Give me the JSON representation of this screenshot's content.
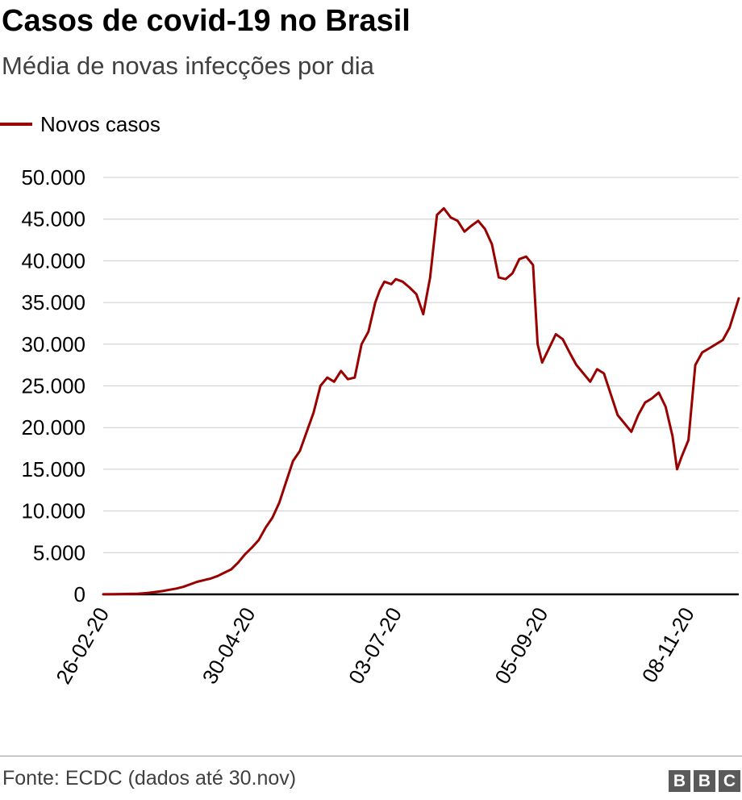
{
  "header": {
    "title": "Casos de covid-19 no Brasil",
    "subtitle": "Média de novas infecções por dia"
  },
  "legend": {
    "label": "Novos casos",
    "color": "#990000"
  },
  "footer": {
    "source": "Fonte: ECDC (dados até 30.nov)",
    "logo": [
      "B",
      "B",
      "C"
    ]
  },
  "chart_data": {
    "type": "line",
    "title": "Casos de covid-19 no Brasil",
    "subtitle": "Média de novas infecções por dia",
    "xlabel": "",
    "ylabel": "",
    "ylim": [
      0,
      50000
    ],
    "yticks": [
      0,
      5000,
      10000,
      15000,
      20000,
      25000,
      30000,
      35000,
      40000,
      45000,
      50000
    ],
    "ytick_labels": [
      "0",
      "5.000",
      "10.000",
      "15.000",
      "20.000",
      "25.000",
      "30.000",
      "35.000",
      "40.000",
      "45.000",
      "50.000"
    ],
    "xlim": [
      "2020-02-26",
      "2020-11-30"
    ],
    "xticks": [
      "2020-02-26",
      "2020-04-30",
      "2020-07-03",
      "2020-09-05",
      "2020-11-08"
    ],
    "xtick_labels": [
      "26-02-20",
      "30-04-20",
      "03-07-20",
      "05-09-20",
      "08-11-20"
    ],
    "grid": "horizontal",
    "legend_position": "top-left",
    "series": [
      {
        "name": "Novos casos",
        "color": "#990000",
        "x": [
          "2020-02-26",
          "2020-03-02",
          "2020-03-07",
          "2020-03-12",
          "2020-03-16",
          "2020-03-19",
          "2020-03-23",
          "2020-03-26",
          "2020-03-29",
          "2020-04-01",
          "2020-04-04",
          "2020-04-07",
          "2020-04-10",
          "2020-04-13",
          "2020-04-16",
          "2020-04-19",
          "2020-04-22",
          "2020-04-25",
          "2020-04-28",
          "2020-05-01",
          "2020-05-04",
          "2020-05-07",
          "2020-05-10",
          "2020-05-13",
          "2020-05-16",
          "2020-05-19",
          "2020-05-22",
          "2020-05-25",
          "2020-05-28",
          "2020-05-31",
          "2020-06-03",
          "2020-06-06",
          "2020-06-09",
          "2020-06-12",
          "2020-06-15",
          "2020-06-18",
          "2020-06-21",
          "2020-06-24",
          "2020-06-26",
          "2020-06-28",
          "2020-07-01",
          "2020-07-03",
          "2020-07-06",
          "2020-07-09",
          "2020-07-12",
          "2020-07-15",
          "2020-07-18",
          "2020-07-21",
          "2020-07-24",
          "2020-07-27",
          "2020-07-30",
          "2020-08-02",
          "2020-08-05",
          "2020-08-08",
          "2020-08-11",
          "2020-08-14",
          "2020-08-17",
          "2020-08-20",
          "2020-08-23",
          "2020-08-26",
          "2020-08-29",
          "2020-09-01",
          "2020-09-03",
          "2020-09-05",
          "2020-09-08",
          "2020-09-11",
          "2020-09-14",
          "2020-09-17",
          "2020-09-20",
          "2020-09-23",
          "2020-09-26",
          "2020-09-29",
          "2020-10-02",
          "2020-10-05",
          "2020-10-08",
          "2020-10-11",
          "2020-10-14",
          "2020-10-17",
          "2020-10-20",
          "2020-10-23",
          "2020-10-26",
          "2020-10-29",
          "2020-11-01",
          "2020-11-03",
          "2020-11-05",
          "2020-11-08",
          "2020-11-11",
          "2020-11-14",
          "2020-11-17",
          "2020-11-20",
          "2020-11-23",
          "2020-11-26",
          "2020-11-30"
        ],
        "y": [
          10,
          20,
          50,
          80,
          150,
          250,
          400,
          550,
          700,
          900,
          1200,
          1500,
          1700,
          1900,
          2200,
          2600,
          3000,
          3800,
          4800,
          5600,
          6500,
          8000,
          9200,
          11000,
          13500,
          16000,
          17200,
          19500,
          21800,
          25000,
          26000,
          25500,
          26800,
          25800,
          26000,
          30000,
          31500,
          35000,
          36500,
          37500,
          37200,
          37800,
          37500,
          36800,
          36000,
          33600,
          38000,
          45500,
          46300,
          45200,
          44800,
          43500,
          44200,
          44800,
          43800,
          42000,
          38000,
          37800,
          38500,
          40200,
          40500,
          39500,
          30000,
          27800,
          29500,
          31200,
          30600,
          29000,
          27500,
          26500,
          25500,
          27000,
          26500,
          24000,
          21500,
          20500,
          19500,
          21500,
          23000,
          23500,
          24200,
          22500,
          19000,
          15000,
          16500,
          18500,
          27500,
          29000,
          29500,
          30000,
          30500,
          32000,
          35500
        ]
      }
    ]
  }
}
